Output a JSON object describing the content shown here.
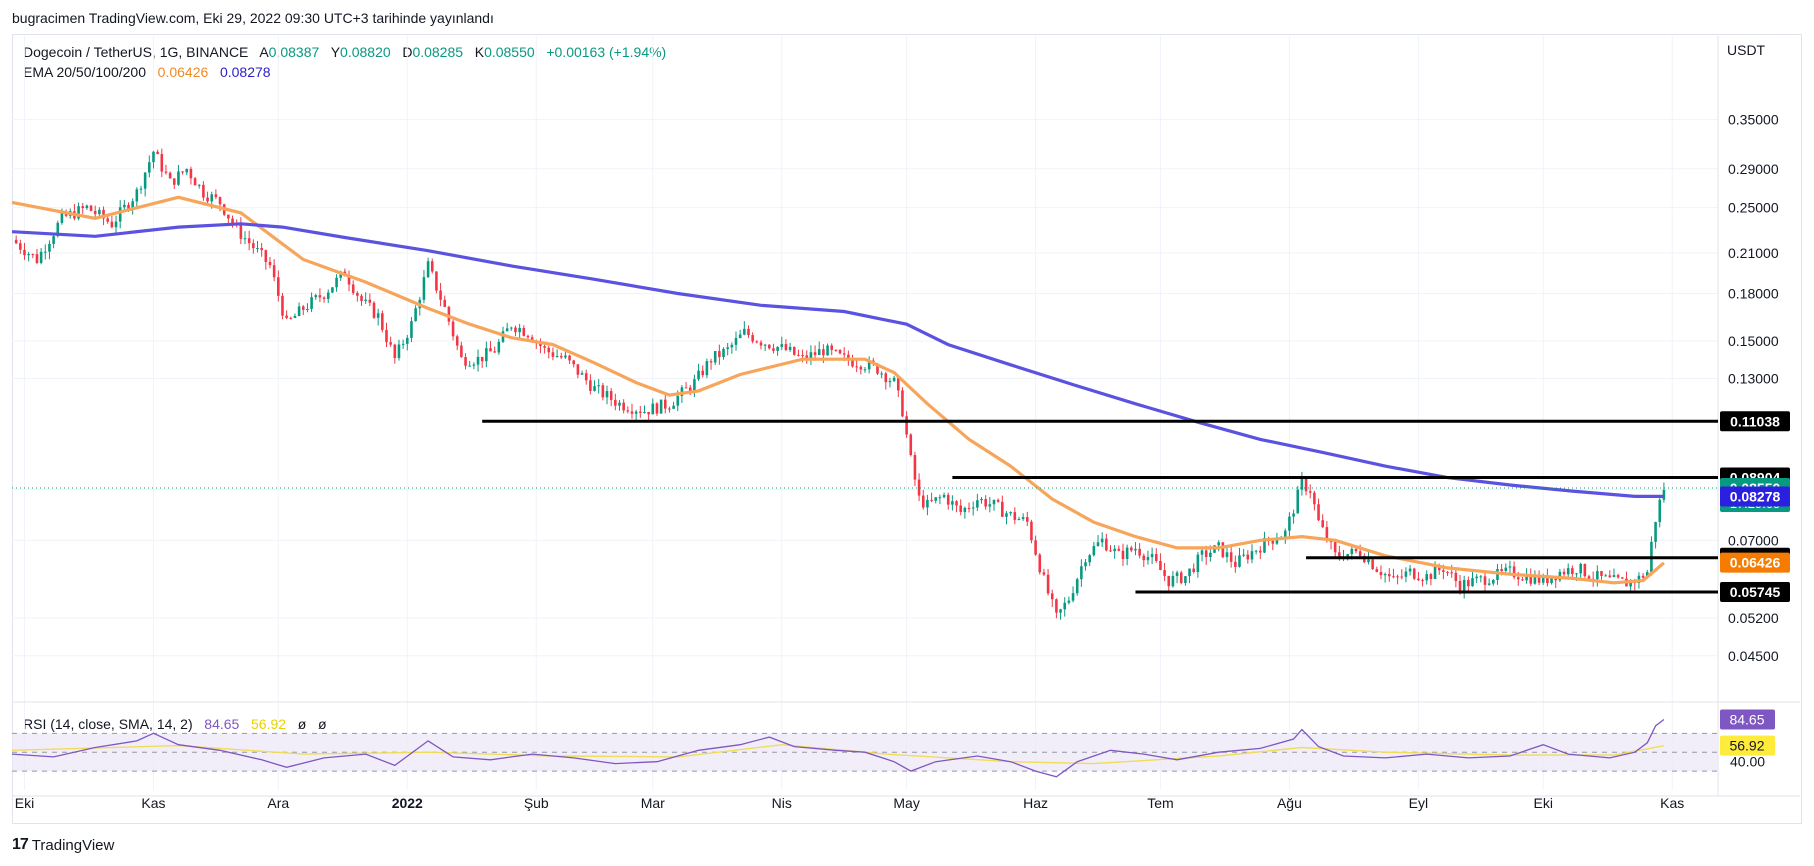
{
  "header": {
    "published_line": "bugracimen TradingView.com, Eki 29, 2022 09:30 UTC+3 tarihinde yayınlandı"
  },
  "legend": {
    "symbol": "Dogecoin / TetherUS, 1G, BINANCE",
    "a_label": "A",
    "a_value": "0.08387",
    "y_label": "Y",
    "y_value": "0.08820",
    "d_label": "D",
    "d_value": "0.08285",
    "k_label": "K",
    "k_value": "0.08550",
    "change": "+0.00163 (+1.94%)",
    "ema_label": "EMA 20/50/100/200",
    "ema_val_1": "0.06426",
    "ema_val_2": "0.08278"
  },
  "rsi_legend": {
    "label": "RSI (14, close, SMA, 14, 2)",
    "rsi_value": "84.65",
    "sma_value": "56.92",
    "extra1": "ø",
    "extra2": "ø"
  },
  "axis": {
    "unit": "USDT"
  },
  "footer": {
    "brand": "TradingView"
  },
  "colors": {
    "up": "#089981",
    "down": "#f23645",
    "ema_short": "#f6a55a",
    "ema_long": "#5b52e0",
    "rsi": "#7e57c2",
    "rsi_sma": "#f0dc5a",
    "level_line": "#000000"
  },
  "chart_data": {
    "type": "candlestick",
    "title": "Dogecoin / TetherUS, 1G, BINANCE",
    "scale": "log",
    "y_range": [
      0.038,
      0.42
    ],
    "y_ticks": [
      "0.35000",
      "0.29000",
      "0.25000",
      "0.21000",
      "0.18000",
      "0.15000",
      "0.13000",
      "0.08500",
      "0.07000",
      "0.05200",
      "0.04500"
    ],
    "x_range_days": [
      0,
      410
    ],
    "x_tick_labels": [
      "Eki",
      "Kas",
      "Ara",
      "2022",
      "Şub",
      "Mar",
      "Nis",
      "May",
      "Haz",
      "Tem",
      "Ağu",
      "Eyl",
      "Eki",
      "Kas"
    ],
    "x_tick_days": [
      3,
      34,
      64,
      95,
      126,
      154,
      185,
      215,
      246,
      276,
      307,
      338,
      368,
      399
    ],
    "price_path": [
      [
        0,
        0.221
      ],
      [
        6,
        0.205
      ],
      [
        12,
        0.24
      ],
      [
        18,
        0.25
      ],
      [
        24,
        0.235
      ],
      [
        30,
        0.265
      ],
      [
        34,
        0.31
      ],
      [
        38,
        0.275
      ],
      [
        42,
        0.29
      ],
      [
        46,
        0.265
      ],
      [
        50,
        0.255
      ],
      [
        54,
        0.23
      ],
      [
        58,
        0.215
      ],
      [
        62,
        0.2
      ],
      [
        66,
        0.16
      ],
      [
        70,
        0.17
      ],
      [
        75,
        0.18
      ],
      [
        80,
        0.195
      ],
      [
        84,
        0.175
      ],
      [
        88,
        0.165
      ],
      [
        92,
        0.14
      ],
      [
        96,
        0.16
      ],
      [
        100,
        0.2
      ],
      [
        104,
        0.17
      ],
      [
        108,
        0.14
      ],
      [
        112,
        0.14
      ],
      [
        116,
        0.145
      ],
      [
        120,
        0.16
      ],
      [
        124,
        0.155
      ],
      [
        128,
        0.145
      ],
      [
        133,
        0.14
      ],
      [
        140,
        0.125
      ],
      [
        146,
        0.118
      ],
      [
        152,
        0.115
      ],
      [
        158,
        0.118
      ],
      [
        164,
        0.128
      ],
      [
        168,
        0.14
      ],
      [
        172,
        0.145
      ],
      [
        176,
        0.155
      ],
      [
        180,
        0.15
      ],
      [
        186,
        0.145
      ],
      [
        190,
        0.14
      ],
      [
        195,
        0.145
      ],
      [
        200,
        0.14
      ],
      [
        204,
        0.138
      ],
      [
        208,
        0.135
      ],
      [
        212,
        0.128
      ],
      [
        214,
        0.115
      ],
      [
        216,
        0.095
      ],
      [
        218,
        0.082
      ],
      [
        220,
        0.08
      ],
      [
        224,
        0.083
      ],
      [
        228,
        0.078
      ],
      [
        232,
        0.082
      ],
      [
        236,
        0.08
      ],
      [
        240,
        0.077
      ],
      [
        244,
        0.075
      ],
      [
        248,
        0.06
      ],
      [
        251,
        0.052
      ],
      [
        254,
        0.056
      ],
      [
        258,
        0.066
      ],
      [
        262,
        0.07
      ],
      [
        266,
        0.066
      ],
      [
        270,
        0.068
      ],
      [
        274,
        0.065
      ],
      [
        278,
        0.06
      ],
      [
        282,
        0.061
      ],
      [
        286,
        0.066
      ],
      [
        290,
        0.068
      ],
      [
        294,
        0.064
      ],
      [
        298,
        0.067
      ],
      [
        302,
        0.07
      ],
      [
        306,
        0.072
      ],
      [
        310,
        0.087
      ],
      [
        312,
        0.085
      ],
      [
        314,
        0.075
      ],
      [
        318,
        0.066
      ],
      [
        324,
        0.067
      ],
      [
        328,
        0.063
      ],
      [
        332,
        0.06
      ],
      [
        336,
        0.062
      ],
      [
        340,
        0.061
      ],
      [
        344,
        0.063
      ],
      [
        348,
        0.059
      ],
      [
        352,
        0.06
      ],
      [
        356,
        0.061
      ],
      [
        360,
        0.062
      ],
      [
        364,
        0.061
      ],
      [
        368,
        0.06
      ],
      [
        372,
        0.062
      ],
      [
        376,
        0.063
      ],
      [
        380,
        0.061
      ],
      [
        384,
        0.06
      ],
      [
        388,
        0.0595
      ],
      [
        391,
        0.0605
      ],
      [
        393,
        0.062
      ],
      [
        394,
        0.069
      ],
      [
        395,
        0.076
      ],
      [
        396,
        0.081
      ],
      [
        397,
        0.0855
      ]
    ],
    "ema_short_path": [
      [
        0,
        0.255
      ],
      [
        20,
        0.24
      ],
      [
        40,
        0.26
      ],
      [
        55,
        0.245
      ],
      [
        70,
        0.205
      ],
      [
        85,
        0.188
      ],
      [
        100,
        0.17
      ],
      [
        110,
        0.16
      ],
      [
        120,
        0.152
      ],
      [
        130,
        0.148
      ],
      [
        140,
        0.138
      ],
      [
        150,
        0.128
      ],
      [
        158,
        0.122
      ],
      [
        165,
        0.124
      ],
      [
        175,
        0.132
      ],
      [
        190,
        0.14
      ],
      [
        205,
        0.14
      ],
      [
        212,
        0.133
      ],
      [
        220,
        0.118
      ],
      [
        230,
        0.103
      ],
      [
        240,
        0.093
      ],
      [
        250,
        0.082
      ],
      [
        260,
        0.075
      ],
      [
        270,
        0.071
      ],
      [
        280,
        0.068
      ],
      [
        290,
        0.068
      ],
      [
        300,
        0.07
      ],
      [
        310,
        0.071
      ],
      [
        318,
        0.07
      ],
      [
        330,
        0.066
      ],
      [
        345,
        0.063
      ],
      [
        360,
        0.0615
      ],
      [
        375,
        0.0605
      ],
      [
        385,
        0.0595
      ],
      [
        392,
        0.06
      ],
      [
        397,
        0.0642
      ]
    ],
    "ema_long_path": [
      [
        0,
        0.228
      ],
      [
        20,
        0.224
      ],
      [
        40,
        0.232
      ],
      [
        55,
        0.235
      ],
      [
        65,
        0.232
      ],
      [
        80,
        0.223
      ],
      [
        100,
        0.212
      ],
      [
        120,
        0.2
      ],
      [
        140,
        0.19
      ],
      [
        160,
        0.18
      ],
      [
        180,
        0.172
      ],
      [
        200,
        0.168
      ],
      [
        215,
        0.16
      ],
      [
        225,
        0.148
      ],
      [
        240,
        0.137
      ],
      [
        255,
        0.127
      ],
      [
        270,
        0.118
      ],
      [
        285,
        0.11
      ],
      [
        300,
        0.103
      ],
      [
        315,
        0.098
      ],
      [
        330,
        0.093
      ],
      [
        345,
        0.089
      ],
      [
        360,
        0.0865
      ],
      [
        375,
        0.0845
      ],
      [
        390,
        0.0828
      ],
      [
        397,
        0.0828
      ]
    ],
    "levels": [
      {
        "value": 0.11038,
        "label": "0.11038",
        "from_day": 113
      },
      {
        "value": 0.08904,
        "label": "0.08904",
        "from_day": 226
      },
      {
        "value": 0.06547,
        "label": "0.06547",
        "from_day": 311
      },
      {
        "value": 0.05745,
        "label": "0.05745",
        "from_day": 270
      }
    ],
    "price_tags": [
      {
        "value": 0.0855,
        "label": "0.08550",
        "sub": "17:29:05",
        "color": "#089981"
      },
      {
        "value": 0.08278,
        "label": "0.08278",
        "color": "#2b1fe0"
      },
      {
        "value": 0.06426,
        "label": "0.06426",
        "color": "#f57c00"
      }
    ],
    "rsi": {
      "range": [
        10,
        100
      ],
      "bands": [
        30,
        50,
        70
      ],
      "band_labels": [
        "40.00"
      ],
      "last": "84.65",
      "sma_last": "56.92",
      "rsi_path": [
        [
          0,
          48
        ],
        [
          10,
          45
        ],
        [
          20,
          55
        ],
        [
          30,
          62
        ],
        [
          34,
          70
        ],
        [
          40,
          58
        ],
        [
          50,
          52
        ],
        [
          60,
          42
        ],
        [
          66,
          34
        ],
        [
          75,
          44
        ],
        [
          85,
          48
        ],
        [
          92,
          36
        ],
        [
          100,
          62
        ],
        [
          106,
          45
        ],
        [
          115,
          42
        ],
        [
          125,
          48
        ],
        [
          135,
          44
        ],
        [
          145,
          38
        ],
        [
          155,
          40
        ],
        [
          165,
          52
        ],
        [
          175,
          58
        ],
        [
          182,
          66
        ],
        [
          188,
          56
        ],
        [
          198,
          52
        ],
        [
          205,
          50
        ],
        [
          212,
          40
        ],
        [
          216,
          30
        ],
        [
          222,
          40
        ],
        [
          232,
          46
        ],
        [
          240,
          40
        ],
        [
          246,
          30
        ],
        [
          251,
          24
        ],
        [
          256,
          40
        ],
        [
          264,
          52
        ],
        [
          272,
          48
        ],
        [
          280,
          42
        ],
        [
          290,
          50
        ],
        [
          300,
          54
        ],
        [
          308,
          64
        ],
        [
          310,
          74
        ],
        [
          314,
          56
        ],
        [
          320,
          46
        ],
        [
          330,
          44
        ],
        [
          340,
          48
        ],
        [
          350,
          44
        ],
        [
          360,
          46
        ],
        [
          368,
          58
        ],
        [
          374,
          48
        ],
        [
          384,
          44
        ],
        [
          390,
          50
        ],
        [
          393,
          60
        ],
        [
          395,
          78
        ],
        [
          397,
          84.65
        ]
      ],
      "sma_path": [
        [
          0,
          52
        ],
        [
          40,
          57
        ],
        [
          70,
          48
        ],
        [
          100,
          50
        ],
        [
          130,
          46
        ],
        [
          160,
          45
        ],
        [
          185,
          58
        ],
        [
          210,
          48
        ],
        [
          240,
          40
        ],
        [
          260,
          38
        ],
        [
          290,
          46
        ],
        [
          310,
          55
        ],
        [
          330,
          50
        ],
        [
          360,
          47
        ],
        [
          385,
          47
        ],
        [
          397,
          56.92
        ]
      ]
    }
  }
}
